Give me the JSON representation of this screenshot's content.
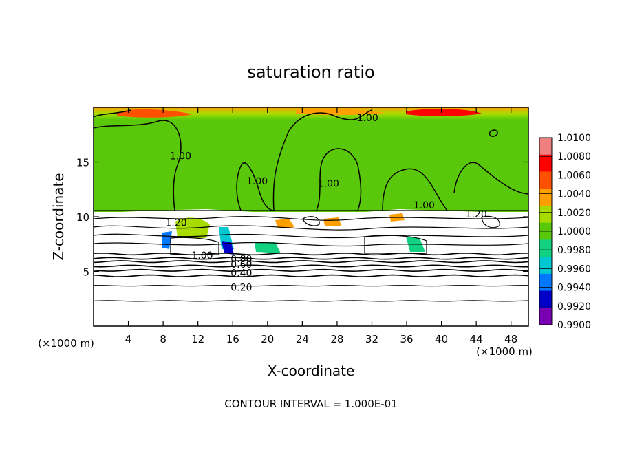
{
  "chart_data": {
    "type": "heatmap",
    "title": "saturation ratio",
    "xlabel": "X-coordinate",
    "ylabel": "Z-coordinate",
    "x_scale_note": "(×1000 m)",
    "y_scale_note": "(×1000 m)",
    "xlim": [
      0,
      50
    ],
    "ylim": [
      0,
      20
    ],
    "x_ticks": [
      "4",
      "8",
      "12",
      "16",
      "20",
      "24",
      "28",
      "32",
      "36",
      "40",
      "44",
      "48"
    ],
    "y_ticks": [
      "5",
      "10",
      "15"
    ],
    "footer": "CONTOUR INTERVAL = 1.000E-01",
    "colorbar": {
      "labels": [
        "1.0100",
        "1.0080",
        "1.0060",
        "1.0040",
        "1.0020",
        "1.0000",
        "0.9980",
        "0.9960",
        "0.9940",
        "0.9920",
        "0.9900"
      ],
      "colors": [
        "#f08080",
        "#ff0000",
        "#ff5000",
        "#ffa000",
        "#a8dc00",
        "#5ac80a",
        "#12d282",
        "#00c8d2",
        "#0078ff",
        "#0000c8",
        "#7a00b4"
      ]
    },
    "contour_labels": [
      {
        "text": "1.00",
        "x": 31.5,
        "z": 19.0
      },
      {
        "text": "1.00",
        "x": 10.0,
        "z": 15.5
      },
      {
        "text": "1.00",
        "x": 18.8,
        "z": 13.2
      },
      {
        "text": "1.00",
        "x": 27.0,
        "z": 13.0
      },
      {
        "text": "1.00",
        "x": 38.0,
        "z": 11.0
      },
      {
        "text": "1.20",
        "x": 44.0,
        "z": 10.2
      },
      {
        "text": "1.20",
        "x": 9.5,
        "z": 9.4
      },
      {
        "text": "1.00",
        "x": 12.5,
        "z": 6.4
      },
      {
        "text": "0.80",
        "x": 17.0,
        "z": 6.1
      },
      {
        "text": "0.60",
        "x": 17.0,
        "z": 5.6
      },
      {
        "text": "0.40",
        "x": 17.0,
        "z": 4.8
      },
      {
        "text": "0.20",
        "x": 17.0,
        "z": 3.5
      }
    ],
    "contour_levels_z": [
      2.3,
      3.7,
      4.6,
      5.1,
      5.5,
      5.9,
      6.2,
      6.6
    ]
  }
}
